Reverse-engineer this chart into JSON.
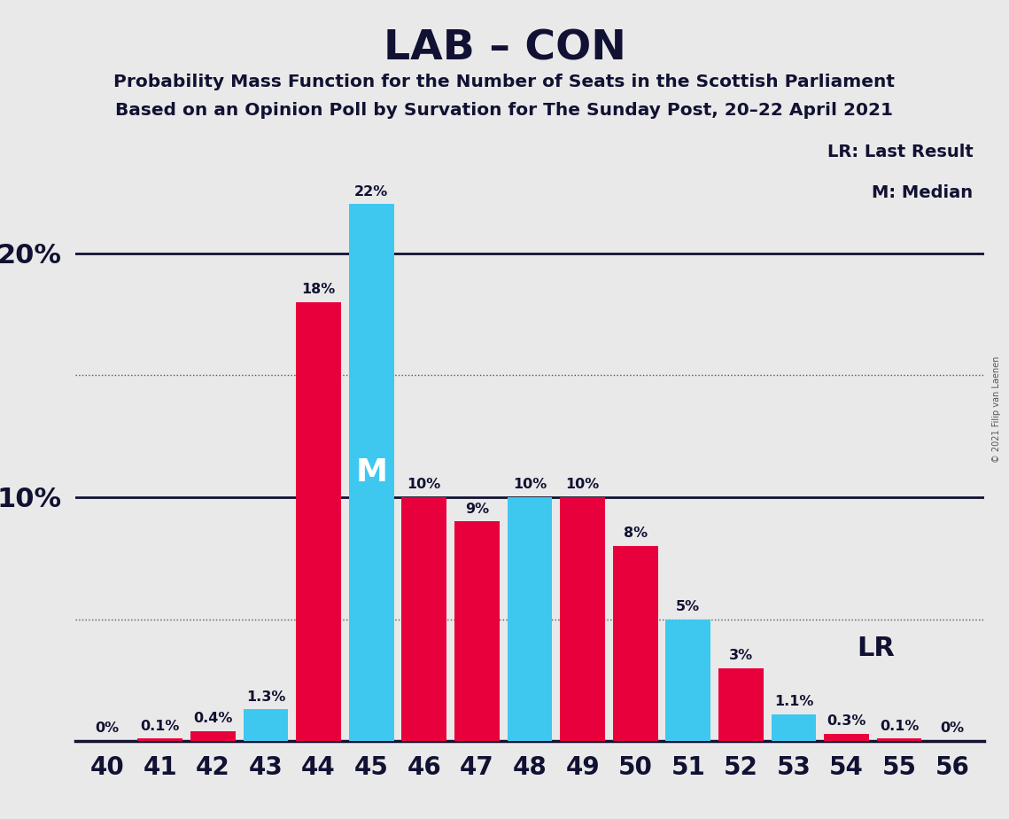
{
  "title": "LAB – CON",
  "subtitle1": "Probability Mass Function for the Number of Seats in the Scottish Parliament",
  "subtitle2": "Based on an Opinion Poll by Survation for The Sunday Post, 20–22 April 2021",
  "copyright": "© 2021 Filip van Laenen",
  "seats": [
    40,
    41,
    42,
    43,
    44,
    45,
    46,
    47,
    48,
    49,
    50,
    51,
    52,
    53,
    54,
    55,
    56
  ],
  "red_values": [
    0,
    0.1,
    0.4,
    0,
    18,
    0,
    10,
    9,
    0,
    10,
    8,
    0,
    3,
    0,
    0.3,
    0.1,
    0
  ],
  "blue_values": [
    0,
    0,
    0,
    1.3,
    0,
    22,
    0,
    0,
    10,
    0,
    0,
    5,
    0,
    1.1,
    0,
    0,
    0
  ],
  "red_labels": [
    "0%",
    "0.1%",
    "0.4%",
    "",
    "18%",
    "",
    "10%",
    "9%",
    "",
    "10%",
    "8%",
    "",
    "3%",
    "",
    "0.3%",
    "0.1%",
    "0%"
  ],
  "blue_labels": [
    "",
    "",
    "",
    "1.3%",
    "",
    "22%",
    "",
    "",
    "10%",
    "",
    "",
    "5%",
    "",
    "1.1%",
    "",
    "",
    ""
  ],
  "show_zero_red": [
    true,
    true,
    true,
    false,
    false,
    false,
    false,
    false,
    false,
    false,
    false,
    false,
    false,
    false,
    false,
    false,
    true
  ],
  "show_zero_blue": [
    false,
    false,
    false,
    false,
    false,
    false,
    false,
    false,
    false,
    false,
    false,
    false,
    false,
    false,
    false,
    false,
    false
  ],
  "median_seat": 45,
  "lr_seat": 53,
  "background_color": "#e9e9e9",
  "red_color": "#e8003c",
  "blue_color": "#3ec8f0",
  "ylim": [
    0,
    25
  ],
  "dotted_lines": [
    5,
    15
  ],
  "solid_lines": [
    10,
    20
  ],
  "bar_width": 0.85
}
